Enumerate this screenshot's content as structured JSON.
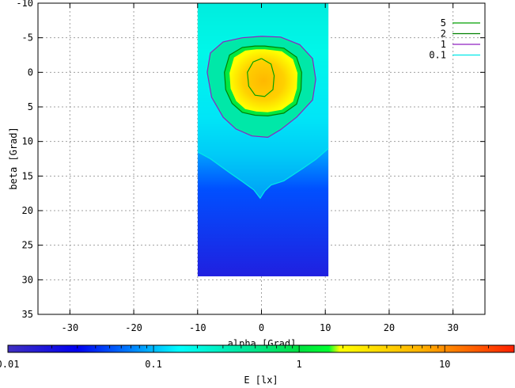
{
  "chart_data": {
    "type": "heatmap",
    "xlabel": "alpha [Grad]",
    "ylabel": "beta [Grad]",
    "xlim": [
      -35,
      35
    ],
    "ylim": [
      -10,
      35
    ],
    "y_inverted": true,
    "x_ticks": [
      -30,
      -20,
      -10,
      0,
      10,
      20,
      30
    ],
    "y_ticks": [
      -10,
      -5,
      0,
      5,
      10,
      15,
      20,
      25,
      30,
      35
    ],
    "grid": true,
    "data_extent": {
      "alpha": [
        -10,
        10.5
      ],
      "beta": [
        -10,
        29.5
      ]
    },
    "legend_position": "top-right",
    "contours": [
      {
        "name": "5",
        "level": 5,
        "color": "#00a000",
        "path": [
          [
            0,
            -2
          ],
          [
            1.5,
            -1.2
          ],
          [
            2,
            0.5
          ],
          [
            1.8,
            2.5
          ],
          [
            0.5,
            3.5
          ],
          [
            -1,
            3.3
          ],
          [
            -2,
            2
          ],
          [
            -2.2,
            0
          ],
          [
            -1.3,
            -1.5
          ],
          [
            0,
            -2
          ]
        ]
      },
      {
        "name": "2",
        "level": 2,
        "color": "#008000",
        "path": [
          [
            0.5,
            -3.8
          ],
          [
            3.5,
            -3.5
          ],
          [
            5.5,
            -2.2
          ],
          [
            6.3,
            0
          ],
          [
            6.2,
            2.5
          ],
          [
            5.5,
            4.6
          ],
          [
            3.5,
            5.9
          ],
          [
            1,
            6.3
          ],
          [
            -1,
            6.2
          ],
          [
            -3,
            5.8
          ],
          [
            -4.6,
            4.5
          ],
          [
            -5.6,
            2.5
          ],
          [
            -5.8,
            0
          ],
          [
            -5,
            -2.5
          ],
          [
            -3,
            -3.6
          ],
          [
            -1,
            -3.8
          ],
          [
            0.5,
            -3.8
          ]
        ]
      },
      {
        "name": "1",
        "level": 1,
        "color": "#9020c0",
        "path": [
          [
            0,
            -5.2
          ],
          [
            3,
            -5.1
          ],
          [
            6,
            -4
          ],
          [
            8,
            -2
          ],
          [
            8.5,
            1
          ],
          [
            8,
            4
          ],
          [
            5.5,
            6.5
          ],
          [
            3,
            8.3
          ],
          [
            1,
            9.4
          ],
          [
            -1.5,
            9.2
          ],
          [
            -4,
            8.2
          ],
          [
            -6,
            6.5
          ],
          [
            -7.8,
            3.6
          ],
          [
            -8.5,
            0
          ],
          [
            -8,
            -2.8
          ],
          [
            -6,
            -4.4
          ],
          [
            -3,
            -5
          ],
          [
            0,
            -5.2
          ]
        ]
      },
      {
        "name": "0.1",
        "level": 0.1,
        "color": "#00e8e8",
        "path": [
          [
            -10,
            11.5
          ],
          [
            -8,
            12.5
          ],
          [
            -5,
            14.5
          ],
          [
            -3,
            15.8
          ],
          [
            -1.2,
            17
          ],
          [
            -0.2,
            18.2
          ],
          [
            0.5,
            17.2
          ],
          [
            1.5,
            16.3
          ],
          [
            3.5,
            15.7
          ],
          [
            6,
            14.2
          ],
          [
            8.5,
            12.6
          ],
          [
            10.5,
            11
          ]
        ]
      }
    ],
    "colorbar": {
      "label": "E [lx]",
      "scale": "log",
      "min": 0.01,
      "max": 30,
      "tick_labels": [
        "0.01",
        "0.1",
        "1",
        "10"
      ],
      "tick_values": [
        0.01,
        0.1,
        1,
        10
      ],
      "stops": [
        {
          "value": 0.01,
          "color": "#4030c0"
        },
        {
          "value": 0.03,
          "color": "#0000f0"
        },
        {
          "value": 0.07,
          "color": "#0080ff"
        },
        {
          "value": 0.15,
          "color": "#00ffff"
        },
        {
          "value": 0.4,
          "color": "#00e8a0"
        },
        {
          "value": 1,
          "color": "#00e040"
        },
        {
          "value": 1.6,
          "color": "#00ff30"
        },
        {
          "value": 1.9,
          "color": "#ffff00"
        },
        {
          "value": 7,
          "color": "#ffb000"
        },
        {
          "value": 30,
          "color": "#ff2000"
        }
      ]
    }
  }
}
